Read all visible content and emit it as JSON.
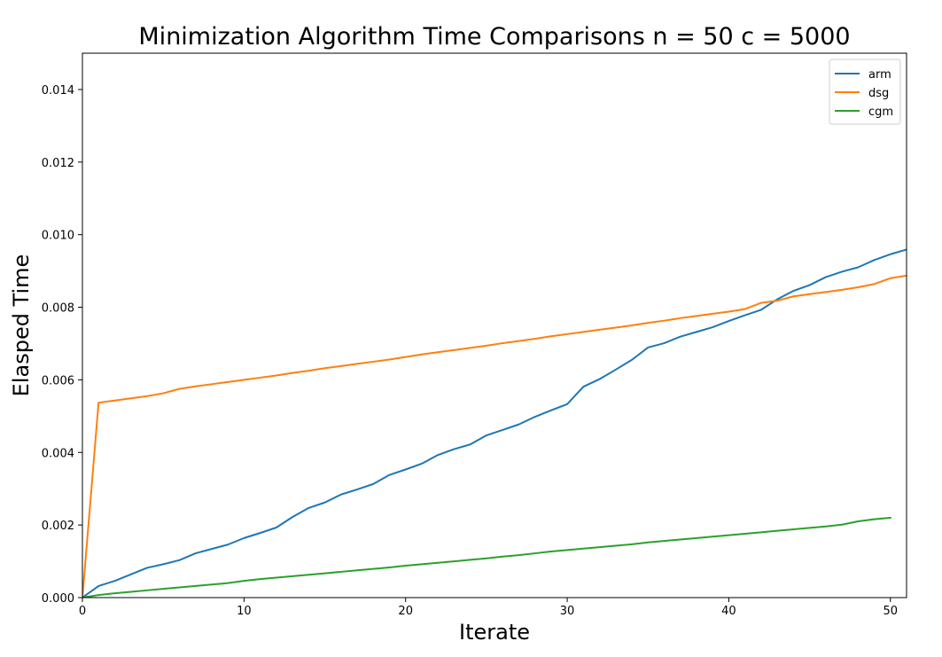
{
  "chart_data": {
    "type": "line",
    "title": "Minimization Algorithm Time Comparisons n = 50 c = 5000",
    "xlabel": "Iterate",
    "ylabel": "Elasped Time",
    "xlim": [
      0,
      51
    ],
    "ylim": [
      0,
      0.015
    ],
    "xticks": [
      0,
      10,
      20,
      30,
      40,
      50
    ],
    "xtick_labels": [
      "0",
      "10",
      "20",
      "30",
      "40",
      "50"
    ],
    "yticks": [
      0,
      0.002,
      0.004,
      0.006,
      0.008,
      0.01,
      0.012,
      0.014
    ],
    "ytick_labels": [
      "0.000",
      "0.002",
      "0.004",
      "0.006",
      "0.008",
      "0.010",
      "0.012",
      "0.014"
    ],
    "grid": false,
    "legend_position": "top-right",
    "series": [
      {
        "name": "arm",
        "color": "#1f77b4",
        "x": [
          0,
          1,
          2,
          3,
          4,
          5,
          6,
          7,
          8,
          9,
          10,
          11,
          12,
          13,
          14,
          15,
          16,
          17,
          18,
          19,
          20,
          21,
          22,
          23,
          24,
          25,
          26,
          27,
          28,
          29,
          30,
          31,
          32,
          33,
          34,
          35,
          36,
          37,
          38,
          39,
          40,
          41,
          42,
          43,
          44,
          45,
          46,
          47,
          48,
          49,
          50,
          51
        ],
        "values": [
          0,
          0.00032,
          0.00046,
          0.00064,
          0.00082,
          0.00092,
          0.00103,
          0.00122,
          0.00134,
          0.00146,
          0.00164,
          0.00178,
          0.00193,
          0.00222,
          0.00247,
          0.00262,
          0.00284,
          0.00298,
          0.00313,
          0.00338,
          0.00353,
          0.00369,
          0.00393,
          0.00409,
          0.00422,
          0.00447,
          0.00462,
          0.00477,
          0.00498,
          0.00516,
          0.00533,
          0.00581,
          0.00602,
          0.00628,
          0.00655,
          0.00689,
          0.00701,
          0.00719,
          0.00732,
          0.00745,
          0.00762,
          0.00778,
          0.00793,
          0.00822,
          0.00845,
          0.00861,
          0.00883,
          0.00898,
          0.0091,
          0.0093,
          0.00946,
          0.00959
        ]
      },
      {
        "name": "dsg",
        "color": "#ff7f0e",
        "x": [
          0,
          1,
          2,
          3,
          4,
          5,
          6,
          7,
          8,
          9,
          10,
          11,
          12,
          13,
          14,
          15,
          16,
          17,
          18,
          19,
          20,
          21,
          22,
          23,
          24,
          25,
          26,
          27,
          28,
          29,
          30,
          31,
          32,
          33,
          34,
          35,
          36,
          37,
          38,
          39,
          40,
          41,
          42,
          43,
          44,
          45,
          46,
          47,
          48,
          49,
          50,
          51
        ],
        "values": [
          0,
          0.00537,
          0.00543,
          0.00549,
          0.00555,
          0.00563,
          0.00575,
          0.00582,
          0.00588,
          0.00594,
          0.006,
          0.00606,
          0.00612,
          0.00619,
          0.00625,
          0.00632,
          0.00638,
          0.00644,
          0.0065,
          0.00656,
          0.00663,
          0.0067,
          0.00676,
          0.00682,
          0.00688,
          0.00694,
          0.00701,
          0.00707,
          0.00713,
          0.0072,
          0.00726,
          0.00732,
          0.00738,
          0.00744,
          0.0075,
          0.00757,
          0.00763,
          0.0077,
          0.00776,
          0.00782,
          0.00788,
          0.00795,
          0.00812,
          0.00818,
          0.0083,
          0.00836,
          0.00842,
          0.00848,
          0.00855,
          0.00864,
          0.0088,
          0.00887
        ]
      },
      {
        "name": "cgm",
        "color": "#2ca02c",
        "x": [
          0,
          1,
          2,
          3,
          4,
          5,
          6,
          7,
          8,
          9,
          10,
          11,
          12,
          13,
          14,
          15,
          16,
          17,
          18,
          19,
          20,
          21,
          22,
          23,
          24,
          25,
          26,
          27,
          28,
          29,
          30,
          31,
          32,
          33,
          34,
          35,
          36,
          37,
          38,
          39,
          40,
          41,
          42,
          43,
          44,
          45,
          46,
          47,
          48,
          49,
          50
        ],
        "values": [
          0,
          7e-05,
          0.00012,
          0.00016,
          0.0002,
          0.00024,
          0.00028,
          0.00032,
          0.00036,
          0.0004,
          0.00046,
          0.00051,
          0.00055,
          0.00059,
          0.00063,
          0.00067,
          0.00071,
          0.00075,
          0.00079,
          0.00083,
          0.00088,
          0.00092,
          0.00096,
          0.001,
          0.00104,
          0.00108,
          0.00113,
          0.00117,
          0.00122,
          0.00127,
          0.00131,
          0.00135,
          0.00139,
          0.00143,
          0.00147,
          0.00152,
          0.00156,
          0.0016,
          0.00164,
          0.00168,
          0.00172,
          0.00176,
          0.0018,
          0.00184,
          0.00188,
          0.00192,
          0.00196,
          0.00201,
          0.0021,
          0.00216,
          0.0022
        ]
      }
    ]
  }
}
